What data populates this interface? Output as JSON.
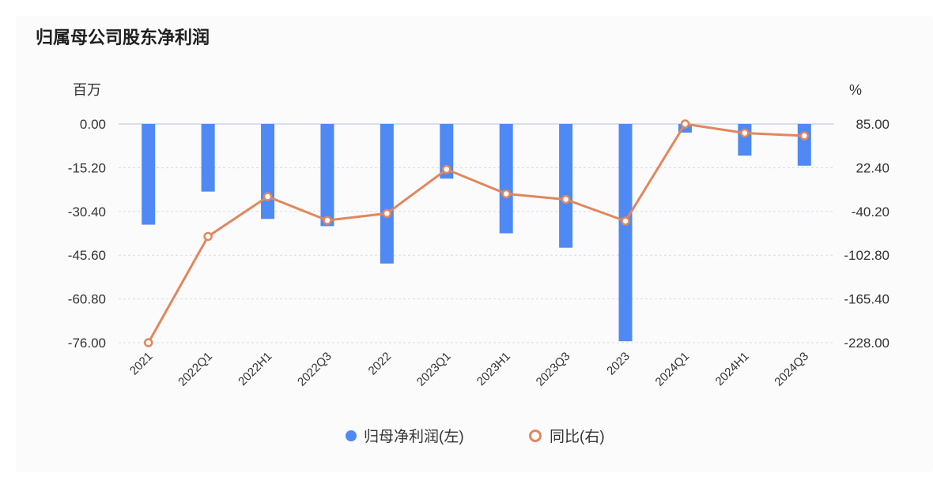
{
  "title": "归属母公司股东净利润",
  "left_unit": "百万",
  "right_unit": "%",
  "colors": {
    "bar": "#4f89f3",
    "line": "#e0875e",
    "grid": "#d8dbe3",
    "text": "#333333"
  },
  "chart_data": {
    "type": "bar",
    "categories": [
      "2021",
      "2022Q1",
      "2022H1",
      "2022Q3",
      "2022",
      "2023Q1",
      "2023H1",
      "2023Q3",
      "2023",
      "2024Q1",
      "2024H1",
      "2024Q3"
    ],
    "y_left": {
      "min": -76.0,
      "max": 0.0,
      "ticks": [
        "0.00",
        "-15.20",
        "-30.40",
        "-45.60",
        "-60.80",
        "-76.00"
      ]
    },
    "y_right": {
      "min": -228.0,
      "max": 85.0,
      "ticks": [
        "85.00",
        "22.40",
        "-40.20",
        "-102.80",
        "-165.40",
        "-228.00"
      ]
    },
    "series": [
      {
        "name": "归母净利润(左)",
        "type": "bar",
        "axis": "left",
        "values": [
          -35.0,
          -23.5,
          -33.0,
          -35.5,
          -48.5,
          -19.0,
          -38.0,
          -43.0,
          -75.5,
          -3.0,
          -11.0,
          -14.5
        ]
      },
      {
        "name": "同比(右)",
        "type": "line",
        "axis": "right",
        "values": [
          -228.0,
          -76.0,
          -19.0,
          -53.0,
          -43.0,
          20.0,
          -15.0,
          -23.0,
          -54.0,
          85.0,
          72.0,
          68.0
        ]
      }
    ],
    "legend": "bottom-center",
    "grid": true
  }
}
